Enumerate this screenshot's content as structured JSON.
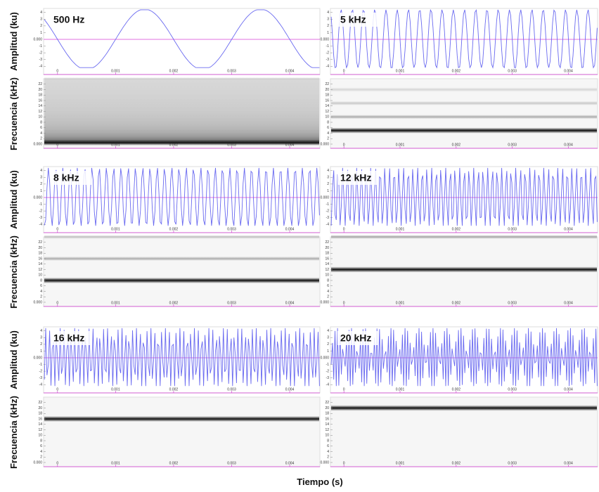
{
  "panels": [
    {
      "label": "500 Hz"
    },
    {
      "label": "5 kHz"
    },
    {
      "label": "8 kHz"
    },
    {
      "label": "12 kHz"
    },
    {
      "label": "16 kHz"
    },
    {
      "label": "20 kHz"
    }
  ],
  "amplitude_axis": {
    "label": "Amplitud (ku)",
    "ylim": [
      -4.6,
      4.6
    ],
    "ticks": [
      -4,
      -3,
      -2,
      -1,
      {
        "value": 0,
        "label": "0.000"
      },
      1,
      2,
      3,
      4
    ]
  },
  "frequency_axis": {
    "label": "Frecuencia (kHz)",
    "ylim": [
      0,
      24
    ],
    "ticks": [
      {
        "value": 0,
        "label": "0.000"
      },
      2,
      4,
      6,
      8,
      10,
      12,
      14,
      16,
      18,
      20,
      22
    ]
  },
  "time_axis": {
    "label": "Tiempo (s)",
    "xlim": [
      -0.00024,
      0.00452
    ],
    "ticks": [
      0,
      0.001,
      0.002,
      0.003,
      0.004
    ]
  }
}
